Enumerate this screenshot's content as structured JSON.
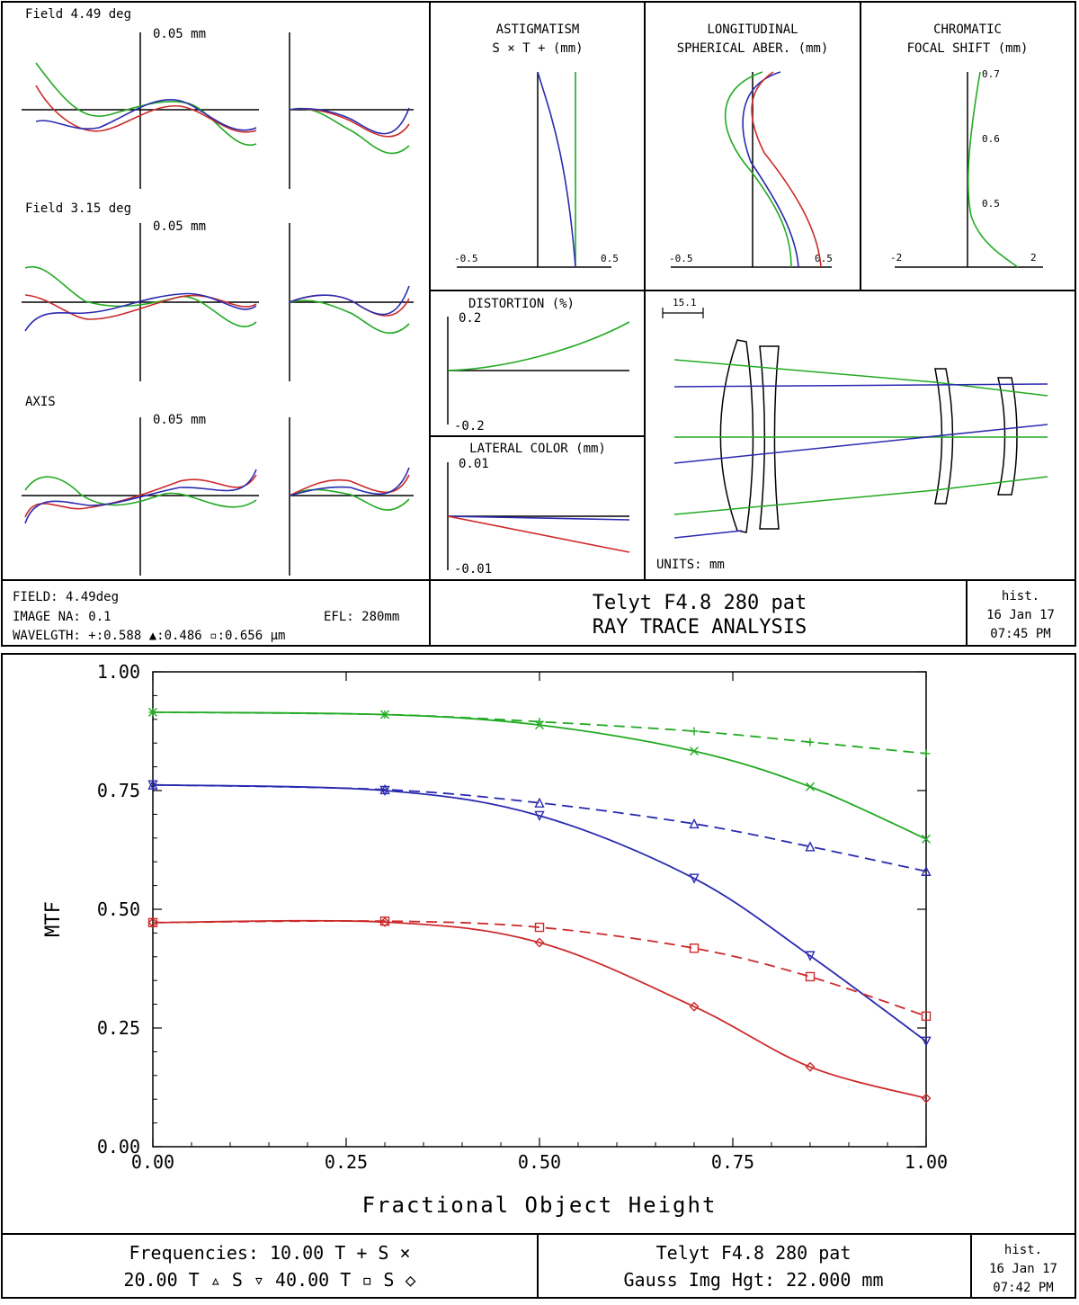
{
  "top": {
    "fan": {
      "rows": [
        {
          "label": "Field 4.49 deg",
          "scale": "0.05 mm"
        },
        {
          "label": "Field 3.15 deg",
          "scale": "0.05 mm"
        },
        {
          "label": "AXIS",
          "scale": "0.05 mm"
        }
      ]
    },
    "astig": {
      "title1": "ASTIGMATISM",
      "title2": "S × T + (mm)",
      "xmin": "-0.5",
      "xmax": "0.5"
    },
    "lsa": {
      "title1": "LONGITUDINAL",
      "title2": "SPHERICAL ABER. (mm)",
      "xmin": "-0.5",
      "xmax": "0.5"
    },
    "chrom": {
      "title1": "CHROMATIC",
      "title2": "FOCAL SHIFT (mm)",
      "xmin": "-2",
      "xmax": "2",
      "t07": "0.7",
      "t06": "0.6",
      "t05": "0.5"
    },
    "dist": {
      "title": "DISTORTION (%)",
      "ymax": "0.2",
      "ymin": "-0.2"
    },
    "lat": {
      "title": "LATERAL COLOR (mm)",
      "ymax": "0.01",
      "ymin": "-0.01"
    },
    "layout": {
      "scale": "15.1",
      "units": "UNITS: mm"
    },
    "footer": {
      "field": "FIELD: 4.49deg",
      "na": "IMAGE NA: 0.1",
      "efl": "EFL: 280mm",
      "wave": "WAVELGTH: +:0.588 ▲:0.486 ▫:0.656 μm",
      "title1": "Telyt F4.8 280 pat",
      "title2": "RAY TRACE ANALYSIS",
      "hist": "hist.",
      "date": "16 Jan 17",
      "time": "07:45 PM"
    }
  },
  "bottom": {
    "footer": {
      "freq1": "Frequencies: 10.00 T + S ×",
      "freq2": "20.00 T ▵ S ▿  40.00 T ▫ S ◇",
      "title1": "Telyt F4.8 280 pat",
      "title2": "Gauss Img Hgt: 22.000 mm",
      "hist": "hist.",
      "date": "16 Jan 17",
      "time": "07:42 PM"
    }
  },
  "chart_data": {
    "type": "line",
    "xlabel": "Fractional Object Height",
    "ylabel": "MTF",
    "xlim": [
      0,
      1
    ],
    "ylim": [
      0,
      1
    ],
    "xticks": [
      "0.00",
      "0.25",
      "0.50",
      "0.75",
      "1.00"
    ],
    "yticks": [
      "0.00",
      "0.25",
      "0.50",
      "0.75",
      "1.00"
    ],
    "x": [
      0,
      0.3,
      0.5,
      0.7,
      0.85,
      1.0
    ],
    "series": [
      {
        "name": "10.00 T",
        "color": "#22aa22",
        "dash": true,
        "values": [
          0.915,
          0.91,
          0.895,
          0.875,
          0.852,
          0.828
        ]
      },
      {
        "name": "10.00 S",
        "color": "#22aa22",
        "dash": false,
        "values": [
          0.915,
          0.91,
          0.888,
          0.833,
          0.758,
          0.648
        ]
      },
      {
        "name": "20.00 T",
        "color": "#2a2ab0",
        "dash": true,
        "values": [
          0.762,
          0.752,
          0.724,
          0.68,
          0.632,
          0.58
        ]
      },
      {
        "name": "20.00 S",
        "color": "#2a2ab0",
        "dash": false,
        "values": [
          0.762,
          0.75,
          0.697,
          0.565,
          0.402,
          0.222
        ]
      },
      {
        "name": "40.00 T",
        "color": "#cc2a2a",
        "dash": true,
        "values": [
          0.472,
          0.475,
          0.462,
          0.418,
          0.358,
          0.275
        ]
      },
      {
        "name": "40.00 S",
        "color": "#cc2a2a",
        "dash": false,
        "values": [
          0.472,
          0.473,
          0.43,
          0.295,
          0.168,
          0.102
        ]
      }
    ]
  }
}
